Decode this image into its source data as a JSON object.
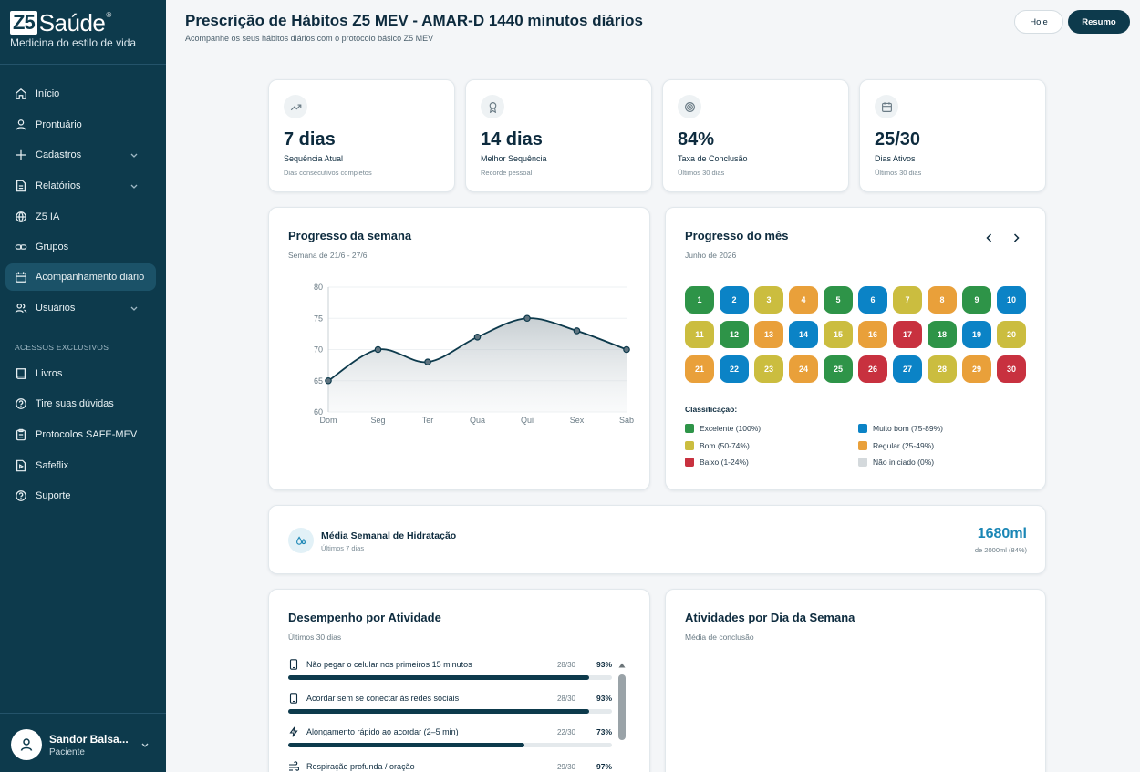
{
  "brand": {
    "logo_box": "Z5",
    "logo_word": "Saúde",
    "logo_reg": "®",
    "tagline": "Medicina do estilo de vida"
  },
  "sidebar": {
    "items": [
      {
        "label": "Início",
        "icon": "home-icon"
      },
      {
        "label": "Prontuário",
        "icon": "user-icon"
      },
      {
        "label": "Cadastros",
        "icon": "plus-icon",
        "expandable": true
      },
      {
        "label": "Relatórios",
        "icon": "document-icon",
        "expandable": true
      },
      {
        "label": "Z5 IA",
        "icon": "globe-icon"
      },
      {
        "label": "Grupos",
        "icon": "link-icon"
      },
      {
        "label": "Acompanhamento diário",
        "icon": "calendar-icon",
        "active": true
      },
      {
        "label": "Usuários",
        "icon": "users-icon",
        "expandable": true
      }
    ],
    "section_label": "ACESSOS EXCLUSIVOS",
    "exclusive_items": [
      {
        "label": "Livros",
        "icon": "book-icon"
      },
      {
        "label": "Tire suas dúvidas",
        "icon": "help-icon"
      },
      {
        "label": "Protocolos SAFE-MEV",
        "icon": "clipboard-icon"
      },
      {
        "label": "Safeflix",
        "icon": "video-icon"
      },
      {
        "label": "Suporte",
        "icon": "support-icon"
      }
    ],
    "user": {
      "name": "Sandor Balsa...",
      "role": "Paciente"
    }
  },
  "header": {
    "title": "Prescrição de Hábitos Z5 MEV - AMAR-D 1440 minutos diários",
    "subtitle": "Acompanhe os seus hábitos diários com o protocolo básico Z5 MEV",
    "today_label": "Hoje",
    "summary_label": "Resumo"
  },
  "stats": [
    {
      "value": "7 dias",
      "label": "Sequência Atual",
      "note": "Dias consecutivos completos",
      "icon": "trend-up-icon"
    },
    {
      "value": "14 dias",
      "label": "Melhor Sequência",
      "note": "Recorde pessoal",
      "icon": "award-icon"
    },
    {
      "value": "84%",
      "label": "Taxa de Conclusão",
      "note": "Últimos 30 dias",
      "icon": "target-icon"
    },
    {
      "value": "25/30",
      "label": "Dias Ativos",
      "note": "Últimos 30 dias",
      "icon": "calendar-icon"
    }
  ],
  "week": {
    "title": "Progresso da semana",
    "subtitle": "Semana de 21/6 - 27/6"
  },
  "chart_data": {
    "type": "area",
    "categories": [
      "Dom",
      "Seg",
      "Ter",
      "Qua",
      "Qui",
      "Sex",
      "Sáb"
    ],
    "values": [
      65,
      70,
      68,
      72,
      75,
      73,
      70
    ],
    "ylim": [
      60,
      80
    ],
    "yticks": [
      60,
      65,
      70,
      75,
      80
    ],
    "grid": true,
    "color": "#0d3a4c"
  },
  "month": {
    "title": "Progresso do mês",
    "subtitle": "Junho de 2026",
    "days": [
      {
        "n": "1",
        "level": "excelente"
      },
      {
        "n": "2",
        "level": "muito_bom"
      },
      {
        "n": "3",
        "level": "bom"
      },
      {
        "n": "4",
        "level": "regular"
      },
      {
        "n": "5",
        "level": "excelente"
      },
      {
        "n": "6",
        "level": "muito_bom"
      },
      {
        "n": "7",
        "level": "bom"
      },
      {
        "n": "8",
        "level": "regular"
      },
      {
        "n": "9",
        "level": "excelente"
      },
      {
        "n": "10",
        "level": "muito_bom"
      },
      {
        "n": "11",
        "level": "bom"
      },
      {
        "n": "12",
        "level": "excelente"
      },
      {
        "n": "13",
        "level": "regular"
      },
      {
        "n": "14",
        "level": "muito_bom"
      },
      {
        "n": "15",
        "level": "bom"
      },
      {
        "n": "16",
        "level": "regular"
      },
      {
        "n": "17",
        "level": "baixo"
      },
      {
        "n": "18",
        "level": "excelente"
      },
      {
        "n": "19",
        "level": "muito_bom"
      },
      {
        "n": "20",
        "level": "bom"
      },
      {
        "n": "21",
        "level": "regular"
      },
      {
        "n": "22",
        "level": "muito_bom"
      },
      {
        "n": "23",
        "level": "bom"
      },
      {
        "n": "24",
        "level": "regular"
      },
      {
        "n": "25",
        "level": "excelente"
      },
      {
        "n": "26",
        "level": "baixo"
      },
      {
        "n": "27",
        "level": "muito_bom"
      },
      {
        "n": "28",
        "level": "bom"
      },
      {
        "n": "29",
        "level": "regular"
      },
      {
        "n": "30",
        "level": "baixo"
      }
    ],
    "legend_title": "Classificação:",
    "legend": [
      {
        "key": "excelente",
        "label": "Excelente (100%)"
      },
      {
        "key": "muito_bom",
        "label": "Muito bom (75-89%)"
      },
      {
        "key": "bom",
        "label": "Bom (50-74%)"
      },
      {
        "key": "regular",
        "label": "Regular (25-49%)"
      },
      {
        "key": "baixo",
        "label": "Baixo (1-24%)"
      },
      {
        "key": "nao_iniciado",
        "label": "Não iniciado (0%)"
      }
    ],
    "colors": {
      "excelente": "#2e9448",
      "muito_bom": "#0b83c6",
      "bom": "#cbbd3f",
      "regular": "#e9a03a",
      "baixo": "#c8313f",
      "nao_iniciado": "#d4d9dc"
    }
  },
  "hydration": {
    "title": "Média Semanal de Hidratação",
    "subtitle": "Últimos 7 dias",
    "value": "1680ml",
    "note": "de 2000ml (84%)"
  },
  "activities": {
    "title": "Desempenho por Atividade",
    "subtitle": "Últimos 30 dias",
    "items": [
      {
        "name": "Não pegar o celular nos primeiros 15 minutos",
        "count": "28/30",
        "pct": "93%",
        "fraction": 0.93,
        "icon": "phone-icon"
      },
      {
        "name": "Acordar sem se conectar às redes sociais",
        "count": "28/30",
        "pct": "93%",
        "fraction": 0.93,
        "icon": "phone-icon"
      },
      {
        "name": "Alongamento rápido ao acordar (2–5 min)",
        "count": "22/30",
        "pct": "73%",
        "fraction": 0.73,
        "icon": "bolt-icon"
      },
      {
        "name": "Respiração profunda / oração",
        "count": "29/30",
        "pct": "97%",
        "fraction": 0.97,
        "icon": "wind-icon"
      }
    ]
  },
  "weekday": {
    "title": "Atividades por Dia da Semana",
    "subtitle": "Média de conclusão"
  }
}
